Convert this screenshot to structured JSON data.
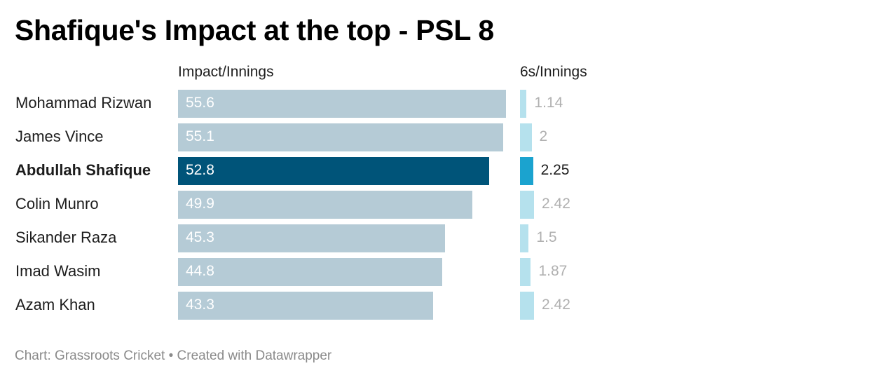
{
  "chart_data": {
    "type": "bar",
    "title": "Shafique's Impact at the top - PSL 8",
    "categories": [
      "Mohammad Rizwan",
      "James Vince",
      "Abdullah Shafique",
      "Colin Munro",
      "Sikander Raza",
      "Imad Wasim",
      "Azam Khan"
    ],
    "highlighted_category": "Abdullah Shafique",
    "series": [
      {
        "name": "Impact/Innings",
        "values": [
          55.6,
          55.1,
          52.8,
          49.9,
          45.3,
          44.8,
          43.3
        ],
        "labels": [
          "55.6",
          "55.1",
          "52.8",
          "49.9",
          "45.3",
          "44.8",
          "43.3"
        ],
        "color": "#b5cbd6",
        "highlight_color": "#005479"
      },
      {
        "name": "6s/Innings",
        "values": [
          1.14,
          2,
          2.25,
          2.42,
          1.5,
          1.87,
          2.42
        ],
        "labels": [
          "1.14",
          "2",
          "2.25",
          "2.42",
          "1.5",
          "1.87",
          "2.42"
        ],
        "color": "#b5e1ed",
        "highlight_color": "#1ba3cf"
      }
    ],
    "grid": false,
    "legend": "none"
  },
  "footer": {
    "source_text": "Chart: Grassroots Cricket • Created with Datawrapper"
  }
}
